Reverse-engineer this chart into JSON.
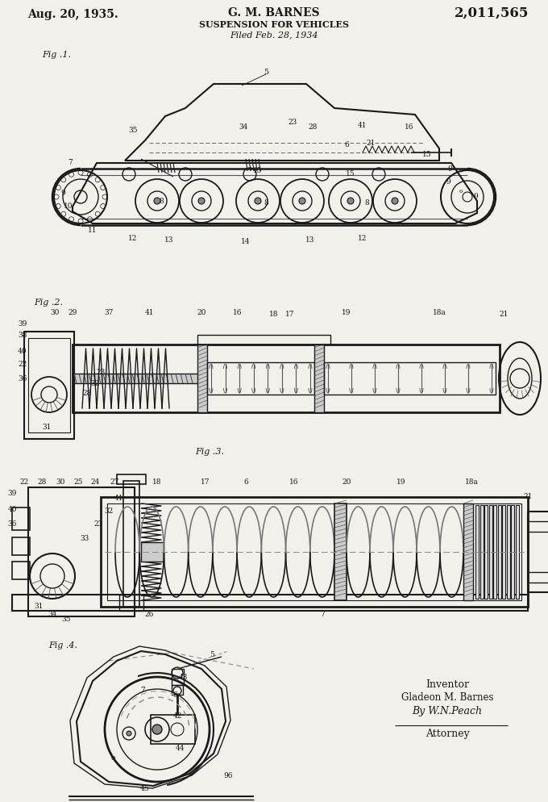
{
  "background_color": "#f2f0eb",
  "title_date": "Aug. 20, 1935.",
  "title_inventor": "G. M. BARNES",
  "title_patent": "2,011,565",
  "title_subject": "SUSPENSION FOR VEHICLES",
  "title_filed": "Filed Feb. 28, 1934",
  "fig1_label": "Fig .1.",
  "fig2_label": "Fig .2.",
  "fig3_label": "Fig .3.",
  "fig4_label": "Fig .4."
}
